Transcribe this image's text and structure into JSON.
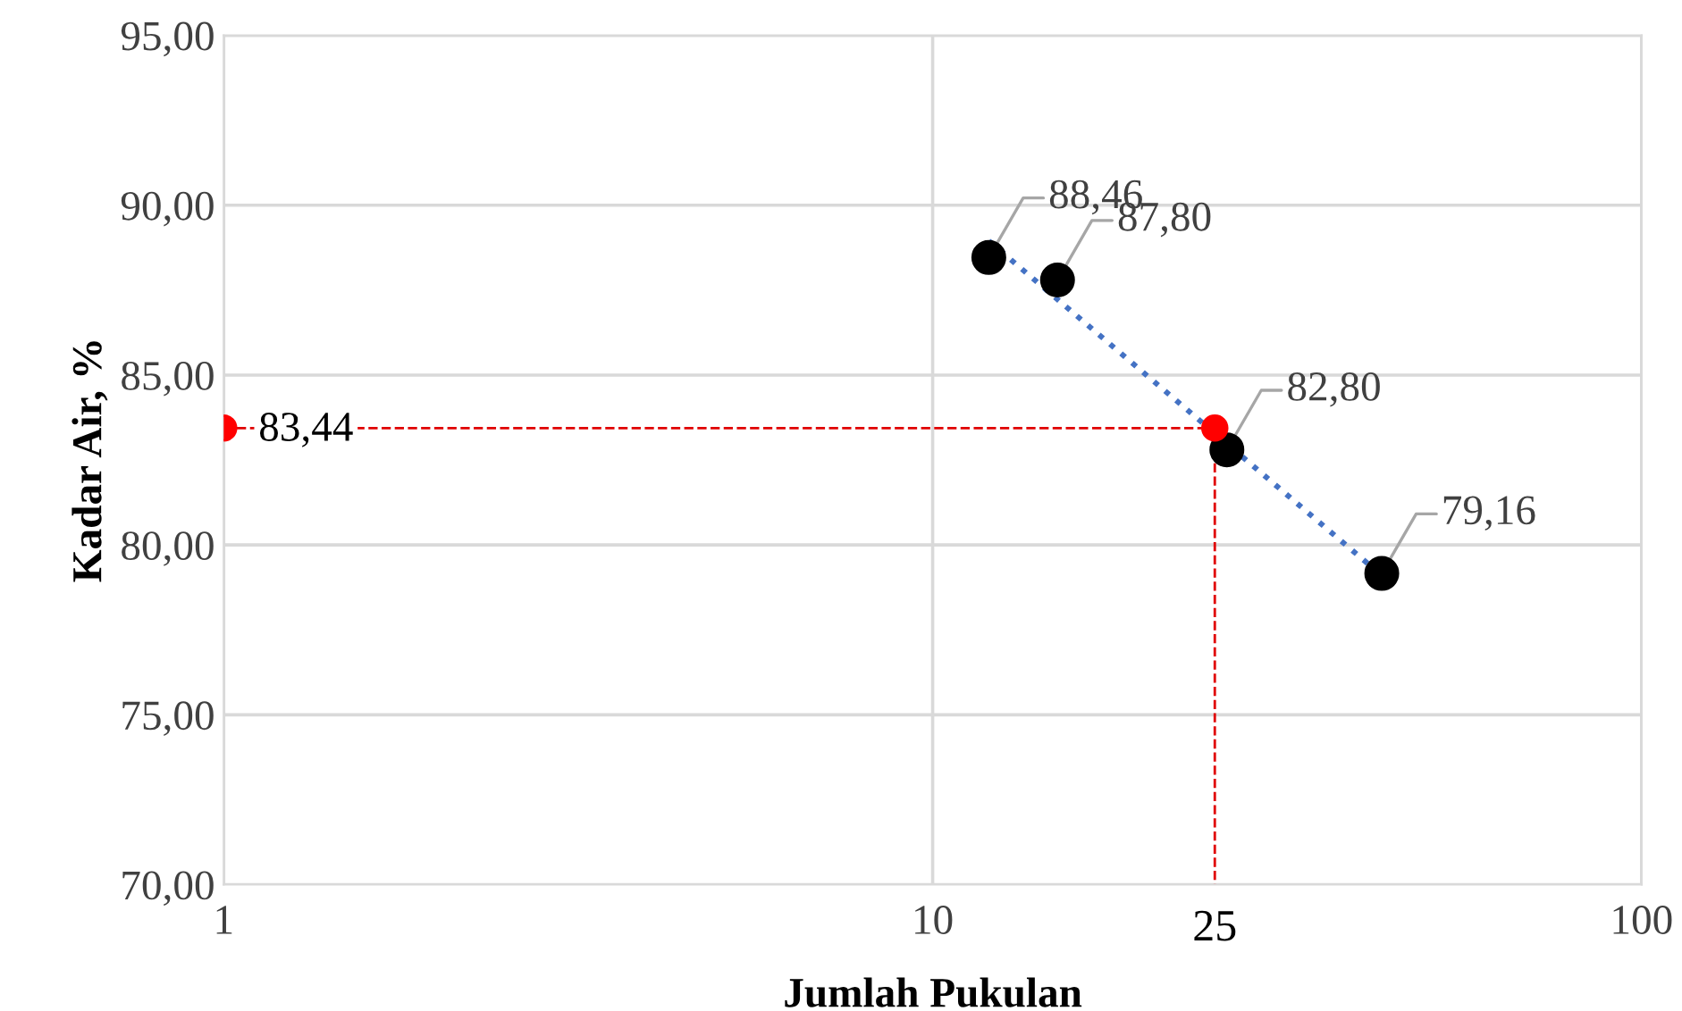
{
  "chart_data": {
    "type": "scatter",
    "xlabel": "Jumlah Pukulan",
    "ylabel": "Kadar Air, %",
    "log": "x",
    "xlim": [
      1,
      100
    ],
    "xticks": [
      1,
      10,
      100
    ],
    "ylim": [
      70,
      95
    ],
    "yticks": [
      {
        "value": 70,
        "label": "70,00"
      },
      {
        "value": 75,
        "label": "75,00"
      },
      {
        "value": 80,
        "label": "80,00"
      },
      {
        "value": 85,
        "label": "85,00"
      },
      {
        "value": 90,
        "label": "90,00"
      },
      {
        "value": 95,
        "label": "95,00"
      }
    ],
    "grid": true,
    "series": [
      {
        "type": "line",
        "color": "#e00000",
        "line_style": "dashed",
        "marker": "none",
        "x": [
          1,
          25,
          25
        ],
        "values": [
          83.44,
          83.44,
          70
        ]
      },
      {
        "type": "line",
        "color": "#4472c4",
        "line_style": "dotted",
        "marker": "none",
        "x": [
          12,
          43
        ],
        "values": [
          88.95,
          79.1
        ]
      },
      {
        "color": "#000000",
        "marker": "circle",
        "x": [
          12,
          15,
          26,
          43
        ],
        "values": [
          88.46,
          87.8,
          82.8,
          79.16
        ],
        "value_labels": [
          "88,46",
          "87,80",
          "82,80",
          "79,16"
        ]
      },
      {
        "color": "#ff0000",
        "marker": "circle",
        "x": [
          1,
          25
        ],
        "values": [
          83.44,
          83.44
        ],
        "value_labels": [
          "83,44",
          null
        ]
      }
    ],
    "annotations": [
      {
        "text": "25",
        "x": 25,
        "y": 70
      }
    ]
  }
}
